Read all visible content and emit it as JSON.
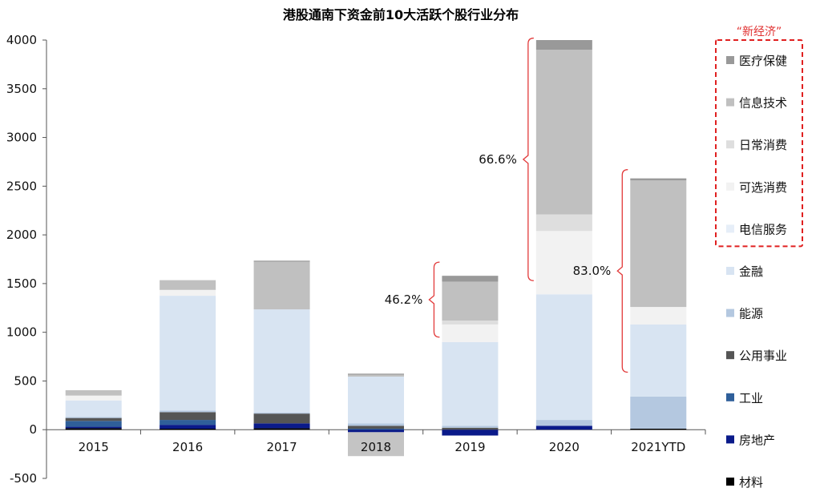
{
  "chart_data": {
    "type": "bar",
    "stacked": true,
    "title": "港股通南下资金前10大活跃个股行业分布",
    "categories": [
      "2015",
      "2016",
      "2017",
      "2018",
      "2019",
      "2020",
      "2021YTD"
    ],
    "highlight_category": "2018",
    "ylim": [
      -500,
      4000
    ],
    "yticks": [
      -500,
      0,
      500,
      1000,
      1500,
      2000,
      2500,
      3000,
      3500,
      4000
    ],
    "ytick_labels": [
      "-500",
      "0",
      "500",
      "1000",
      "1500",
      "2000",
      "2500",
      "3000",
      "3500",
      "4000"
    ],
    "series": [
      {
        "name": "材料",
        "color": "#000000",
        "values": [
          15,
          10,
          15,
          0,
          0,
          0,
          10
        ]
      },
      {
        "name": "房地产",
        "color": "#0a1a8a",
        "values": [
          15,
          40,
          50,
          -25,
          -60,
          40,
          0
        ]
      },
      {
        "name": "工业",
        "color": "#2f5f9a",
        "values": [
          60,
          50,
          0,
          10,
          0,
          0,
          0
        ]
      },
      {
        "name": "公用事业",
        "color": "#555555",
        "values": [
          30,
          80,
          100,
          30,
          20,
          0,
          0
        ]
      },
      {
        "name": "能源",
        "color": "#b4c8e0",
        "values": [
          10,
          15,
          10,
          25,
          20,
          60,
          330
        ]
      },
      {
        "name": "金融",
        "color": "#d8e4f2",
        "values": [
          170,
          1180,
          1060,
          480,
          860,
          1290,
          740
        ]
      },
      {
        "name": "电信服务",
        "color": "#e6eef8",
        "values": [
          0,
          0,
          0,
          0,
          0,
          0,
          0
        ]
      },
      {
        "name": "可选消费",
        "color": "#f2f2f2",
        "values": [
          50,
          60,
          0,
          0,
          180,
          650,
          180
        ]
      },
      {
        "name": "日常消费",
        "color": "#dedede",
        "values": [
          0,
          0,
          0,
          0,
          40,
          170,
          0
        ]
      },
      {
        "name": "信息技术",
        "color": "#c0c0c0",
        "values": [
          55,
          100,
          490,
          20,
          400,
          1690,
          1300
        ]
      },
      {
        "name": "医疗保健",
        "color": "#999999",
        "values": [
          0,
          0,
          10,
          10,
          60,
          100,
          20
        ]
      }
    ],
    "legend_order": [
      "医疗保健",
      "信息技术",
      "日常消费",
      "可选消费",
      "电信服务",
      "金融",
      "能源",
      "公用事业",
      "工业",
      "房地产",
      "材料"
    ],
    "legend_group_label": "“新经济”",
    "legend_group_members": [
      "医疗保健",
      "信息技术",
      "日常消费",
      "可选消费",
      "电信服务"
    ],
    "annotations": [
      {
        "text": "46.2%",
        "category": "2019",
        "from": 950,
        "to": 1720
      },
      {
        "text": "66.6%",
        "category": "2020",
        "from": 1530,
        "to": 4020
      },
      {
        "text": "83.0%",
        "category": "2021YTD",
        "from": 590,
        "to": 2670
      }
    ]
  }
}
